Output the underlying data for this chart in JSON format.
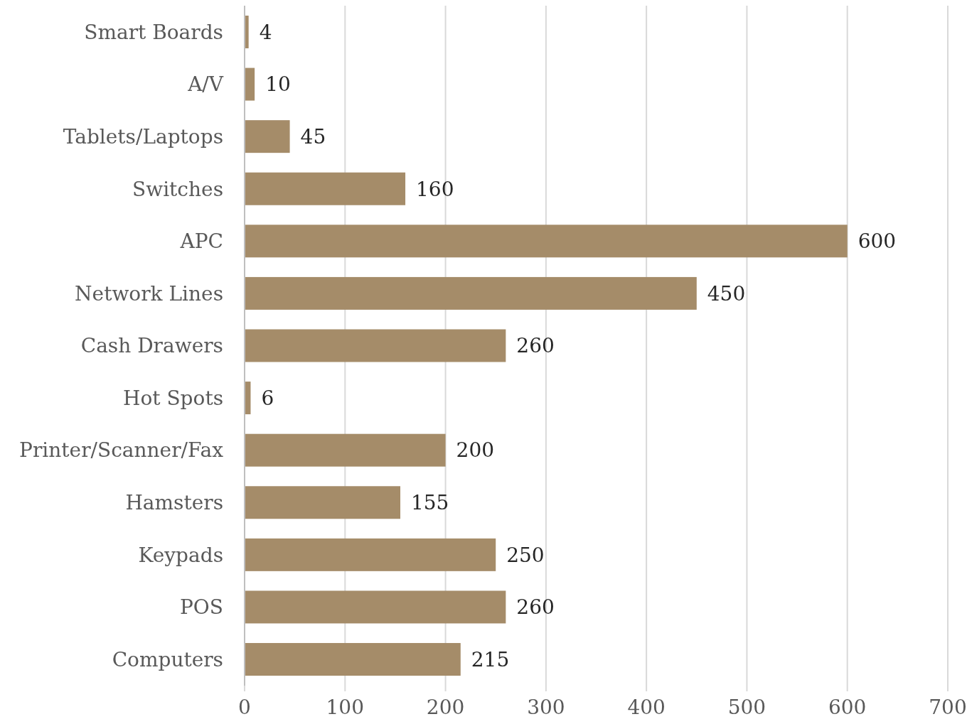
{
  "chart_data": {
    "type": "bar",
    "orientation": "horizontal",
    "categories": [
      "Smart Boards",
      "A/V",
      "Tablets/Laptops",
      "Switches",
      "APC",
      "Network Lines",
      "Cash Drawers",
      "Hot Spots",
      "Printer/Scanner/Fax",
      "Hamsters",
      "Keypads",
      "POS",
      "Computers"
    ],
    "values": [
      4,
      10,
      45,
      160,
      600,
      450,
      260,
      6,
      200,
      155,
      250,
      260,
      215
    ],
    "color": "#a58c69",
    "xlim": [
      0,
      700
    ],
    "xticks": [
      0,
      100,
      200,
      300,
      400,
      500,
      600,
      700
    ],
    "grid": "x",
    "data_labels": true
  }
}
